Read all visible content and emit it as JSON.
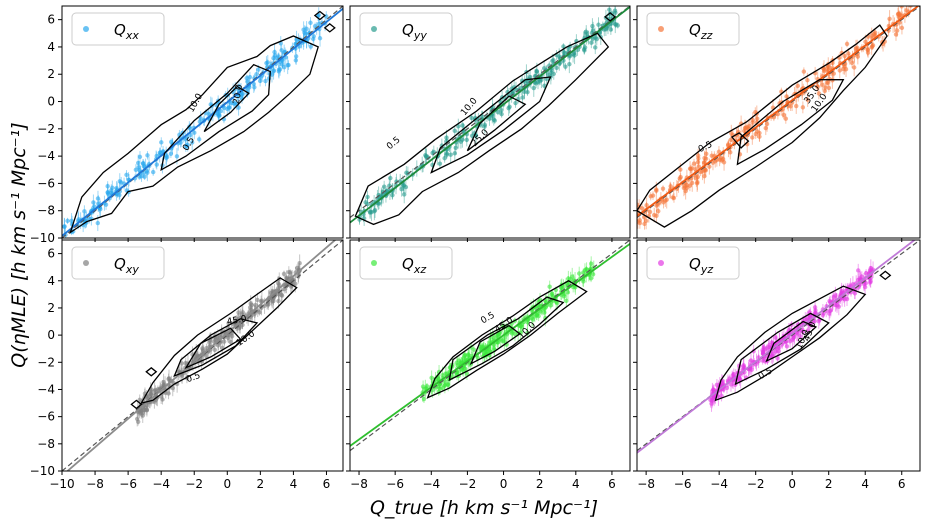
{
  "chart_data": {
    "type": "scatter",
    "ylabel": "Q(ηMLE)  [h km s⁻¹ Mpc⁻¹]",
    "xlabel": "Q_true  [h km s⁻¹ Mpc⁻¹]",
    "y_ticks": [
      -10,
      -8,
      -6,
      -4,
      -2,
      0,
      2,
      4,
      6
    ],
    "panels": [
      {
        "name": "Qxx",
        "label_main": "Q",
        "label_sub": "xx",
        "color": "#29a8ee",
        "fit_color": "#1f77d8",
        "xlim": [
          -10,
          7
        ],
        "ylim": [
          -10,
          7
        ],
        "x_ticks": [],
        "x_range": [
          -10,
          6
        ],
        "spread": 0.9,
        "fit": {
          "slope": 0.98,
          "intercept": -0.05
        },
        "outer": [
          [
            -9.5,
            -9.6
          ],
          [
            -8.5,
            -8.8
          ],
          [
            -7,
            -8.2
          ],
          [
            -6,
            -6.6
          ],
          [
            -4.5,
            -6.2
          ],
          [
            -3,
            -4.8
          ],
          [
            -1,
            -3.6
          ],
          [
            1,
            -2.2
          ],
          [
            2.5,
            -0.8
          ],
          [
            3.8,
            0.6
          ],
          [
            5,
            2
          ],
          [
            5.5,
            4
          ],
          [
            4,
            4.8
          ],
          [
            2.6,
            4.1
          ],
          [
            1.8,
            3.3
          ],
          [
            0,
            2.5
          ],
          [
            -1.5,
            0.5
          ],
          [
            -2.5,
            -0.6
          ],
          [
            -4,
            -1.7
          ],
          [
            -6,
            -3.8
          ],
          [
            -7.5,
            -5.2
          ],
          [
            -8.8,
            -7
          ]
        ],
        "inner": [
          [
            -4,
            -5
          ],
          [
            -2.5,
            -4
          ],
          [
            -0.5,
            -2.2
          ],
          [
            1.5,
            -0.7
          ],
          [
            2.5,
            0.5
          ],
          [
            2.6,
            2.2
          ],
          [
            1.6,
            2.7
          ],
          [
            0,
            0.6
          ],
          [
            -2,
            -1.4
          ],
          [
            -3.8,
            -3.8
          ]
        ],
        "core": [
          [
            -1.4,
            -2.2
          ],
          [
            0.2,
            -0.8
          ],
          [
            1.3,
            0.6
          ],
          [
            0.6,
            1.1
          ],
          [
            -0.5,
            -0.2
          ]
        ],
        "clabels": [
          {
            "x": -1.8,
            "y": -0.2,
            "t": "10.0",
            "r": -60
          },
          {
            "x": 0.8,
            "y": 0.5,
            "t": "20.0",
            "r": -80
          },
          {
            "x": -2.2,
            "y": -3.2,
            "t": "0.5",
            "r": -60
          }
        ],
        "diamonds": [
          [
            5.6,
            6.3
          ],
          [
            6.2,
            5.4
          ]
        ]
      },
      {
        "name": "Qyy",
        "label_main": "Q",
        "label_sub": "yy",
        "color": "#2a9d8f",
        "fit_color": "#1e8a3c",
        "xlim": [
          -8.5,
          7
        ],
        "ylim": [
          -10,
          7
        ],
        "x_ticks": [],
        "x_range": [
          -8,
          6.5
        ],
        "spread": 0.85,
        "fit": {
          "slope": 1.02,
          "intercept": -0.2
        },
        "outer": [
          [
            -8.2,
            -8.4
          ],
          [
            -7.2,
            -9
          ],
          [
            -5.8,
            -8.3
          ],
          [
            -4.5,
            -6.6
          ],
          [
            -2.5,
            -5.2
          ],
          [
            -0.8,
            -3.6
          ],
          [
            1,
            -2
          ],
          [
            2.5,
            -0.3
          ],
          [
            4,
            1.6
          ],
          [
            5.8,
            4
          ],
          [
            5.2,
            5
          ],
          [
            3.5,
            4
          ],
          [
            2.3,
            3
          ],
          [
            0.5,
            1.5
          ],
          [
            -1.5,
            -0.7
          ],
          [
            -3.8,
            -2.8
          ],
          [
            -5.5,
            -4.6
          ],
          [
            -7.5,
            -6.2
          ]
        ],
        "inner": [
          [
            -4,
            -5.2
          ],
          [
            -2,
            -3.9
          ],
          [
            0,
            -2.1
          ],
          [
            2,
            0
          ],
          [
            2.6,
            1.8
          ],
          [
            1.2,
            1.6
          ],
          [
            -1,
            -0.7
          ],
          [
            -3.5,
            -3.4
          ]
        ],
        "core": [
          [
            -2,
            -3.6
          ],
          [
            -0.5,
            -2.1
          ],
          [
            1.2,
            -0.2
          ],
          [
            0.3,
            0.4
          ],
          [
            -1.3,
            -1.6
          ]
        ],
        "clabels": [
          {
            "x": -1.8,
            "y": -0.5,
            "t": "10.0",
            "r": -50
          },
          {
            "x": -1.2,
            "y": -2.8,
            "t": "25.0",
            "r": -45
          },
          {
            "x": -6,
            "y": -3.2,
            "t": "0.5",
            "r": -40
          }
        ],
        "diamonds": [
          [
            5.9,
            6.2
          ]
        ]
      },
      {
        "name": "Qzz",
        "label_main": "Q",
        "label_sub": "zz",
        "color": "#f5763a",
        "fit_color": "#f05a14",
        "xlim": [
          -8.5,
          7
        ],
        "ylim": [
          -10,
          7
        ],
        "x_ticks": [],
        "x_range": [
          -8.5,
          6.5
        ],
        "spread": 0.95,
        "fit": {
          "slope": 1.0,
          "intercept": 0.1
        },
        "outer": [
          [
            -8.5,
            -8
          ],
          [
            -7,
            -9.2
          ],
          [
            -5.5,
            -8
          ],
          [
            -4,
            -6.5
          ],
          [
            -2,
            -4.8
          ],
          [
            0,
            -3
          ],
          [
            1.5,
            -1.2
          ],
          [
            2.8,
            0.8
          ],
          [
            4,
            2.5
          ],
          [
            5.2,
            4.8
          ],
          [
            4.8,
            5.6
          ],
          [
            3.5,
            4.2
          ],
          [
            2,
            2.8
          ],
          [
            0,
            1.2
          ],
          [
            -2.5,
            -1.5
          ],
          [
            -4.5,
            -3
          ],
          [
            -6,
            -4.6
          ],
          [
            -7.8,
            -6.5
          ]
        ],
        "inner": [
          [
            -3,
            -4.6
          ],
          [
            -1.5,
            -3.5
          ],
          [
            0.5,
            -1.7
          ],
          [
            2.2,
            0.1
          ],
          [
            2.8,
            1.6
          ],
          [
            1.5,
            1.6
          ],
          [
            -0.5,
            0
          ],
          [
            -2.8,
            -2.6
          ]
        ],
        "core": [
          [
            -3.3,
            -2.6
          ],
          [
            -2.8,
            -3.4
          ],
          [
            -2.4,
            -2.9
          ],
          [
            -2.9,
            -2.3
          ]
        ],
        "clabels": [
          {
            "x": 1.2,
            "y": 0.4,
            "t": "35.0",
            "r": -55
          },
          {
            "x": 1.6,
            "y": -0.2,
            "t": "10.0",
            "r": -55
          },
          {
            "x": -4.7,
            "y": -3.5,
            "t": "0.5",
            "r": -25
          }
        ],
        "diamonds": []
      },
      {
        "name": "Qxy",
        "label_main": "Q",
        "label_sub": "xy",
        "color": "#808080",
        "fit_color": "#8c8c8c",
        "xlim": [
          -10,
          7
        ],
        "ylim": [
          -10,
          7
        ],
        "x_ticks": [
          -10,
          -8,
          -6,
          -4,
          -2,
          0,
          2,
          4,
          6
        ],
        "x_range": [
          -5.5,
          4.5
        ],
        "spread": 0.7,
        "fit": {
          "slope": 1.05,
          "intercept": 0.15
        },
        "outer": [
          [
            -5.2,
            -5
          ],
          [
            -4.5,
            -4.8
          ],
          [
            -3.2,
            -3.6
          ],
          [
            -1.5,
            -2.5
          ],
          [
            0,
            -1.4
          ],
          [
            1.5,
            0.3
          ],
          [
            3,
            2
          ],
          [
            4.2,
            3.5
          ],
          [
            3.2,
            4.2
          ],
          [
            1.8,
            3
          ],
          [
            0.2,
            1.6
          ],
          [
            -1.8,
            0
          ],
          [
            -3.2,
            -1.5
          ],
          [
            -4.5,
            -3.5
          ]
        ],
        "inner": [
          [
            -3.2,
            -3
          ],
          [
            -1.5,
            -2.2
          ],
          [
            0.5,
            -0.8
          ],
          [
            1.8,
            0.9
          ],
          [
            0.8,
            1.2
          ],
          [
            -1,
            0
          ],
          [
            -2.8,
            -1.8
          ]
        ],
        "core": [
          [
            -2.5,
            -2.4
          ],
          [
            -1,
            -1.6
          ],
          [
            0.8,
            -0.3
          ],
          [
            0.2,
            0.5
          ],
          [
            -1.6,
            -0.6
          ]
        ],
        "clabels": [
          {
            "x": 0.6,
            "y": 0.9,
            "t": "45.0",
            "r": -10
          },
          {
            "x": 1.2,
            "y": -0.4,
            "t": "10.0",
            "r": -35
          },
          {
            "x": -2,
            "y": -3.3,
            "t": "0.5",
            "r": -20
          }
        ],
        "diamonds": [
          [
            -4.6,
            -2.7
          ],
          [
            -5.5,
            -5.1
          ]
        ]
      },
      {
        "name": "Qxz",
        "label_main": "Q",
        "label_sub": "xz",
        "color": "#3de83d",
        "fit_color": "#2fbf2f",
        "xlim": [
          -8.5,
          7
        ],
        "ylim": [
          -10,
          7
        ],
        "x_ticks": [
          -8,
          -6,
          -4,
          -2,
          0,
          2,
          4,
          6
        ],
        "x_range": [
          -4.5,
          5
        ],
        "spread": 0.7,
        "fit": {
          "slope": 0.96,
          "intercept": 0.0
        },
        "outer": [
          [
            -4.2,
            -4.6
          ],
          [
            -3,
            -3.9
          ],
          [
            -1.5,
            -2.6
          ],
          [
            0,
            -1.4
          ],
          [
            1.5,
            0
          ],
          [
            3,
            1.6
          ],
          [
            4.6,
            3.2
          ],
          [
            3.6,
            4
          ],
          [
            2,
            2.8
          ],
          [
            0.5,
            1.4
          ],
          [
            -1.2,
            0
          ],
          [
            -2.8,
            -1.6
          ],
          [
            -3.8,
            -3.2
          ]
        ],
        "inner": [
          [
            -3,
            -3.3
          ],
          [
            -1.2,
            -2.1
          ],
          [
            0.5,
            -0.8
          ],
          [
            2,
            0.8
          ],
          [
            3.3,
            2.4
          ],
          [
            2.4,
            2.8
          ],
          [
            0.8,
            1.2
          ],
          [
            -0.9,
            0
          ],
          [
            -2.8,
            -1.8
          ]
        ],
        "core": [
          [
            -1.8,
            -2.1
          ],
          [
            -0.5,
            -1.2
          ],
          [
            0.9,
            0.1
          ],
          [
            0.3,
            0.7
          ],
          [
            -1.3,
            -0.5
          ]
        ],
        "clabels": [
          {
            "x": 0.1,
            "y": 0.6,
            "t": "45.0",
            "r": -35
          },
          {
            "x": 1.4,
            "y": 0.2,
            "t": "10.0",
            "r": -45
          },
          {
            "x": -0.8,
            "y": 1.1,
            "t": "0.5",
            "r": -30
          }
        ],
        "diamonds": []
      },
      {
        "name": "Qyz",
        "label_main": "Q",
        "label_sub": "yz",
        "color": "#e23ce2",
        "fit_color": "#c07ad8",
        "xlim": [
          -8.5,
          7
        ],
        "ylim": [
          -10,
          7
        ],
        "x_ticks": [
          -8,
          -6,
          -4,
          -2,
          0,
          2,
          4,
          6
        ],
        "x_range": [
          -4.5,
          4.5
        ],
        "spread": 0.6,
        "fit": {
          "slope": 1.03,
          "intercept": 0.1
        },
        "outer": [
          [
            -4.2,
            -4.8
          ],
          [
            -3,
            -4.2
          ],
          [
            -1.5,
            -3
          ],
          [
            0,
            -1.6
          ],
          [
            1.5,
            -0.2
          ],
          [
            3,
            1.5
          ],
          [
            4,
            3
          ],
          [
            2.8,
            3.6
          ],
          [
            1.4,
            2.6
          ],
          [
            0,
            1.6
          ],
          [
            -1.5,
            0.2
          ],
          [
            -3,
            -1.6
          ],
          [
            -3.9,
            -3.3
          ]
        ],
        "inner": [
          [
            -3.1,
            -3.6
          ],
          [
            -1.4,
            -2.5
          ],
          [
            0.5,
            -1
          ],
          [
            2,
            0.9
          ],
          [
            1,
            1.6
          ],
          [
            -0.8,
            0.2
          ],
          [
            -2.8,
            -1.8
          ]
        ],
        "core": [
          [
            -1.4,
            -1.9
          ],
          [
            0,
            -1
          ],
          [
            1.3,
            0.6
          ],
          [
            0.6,
            1
          ],
          [
            -1,
            -0.6
          ]
        ],
        "clabels": [
          {
            "x": 1.1,
            "y": 0.2,
            "t": "45.0",
            "r": -70
          },
          {
            "x": 0.7,
            "y": -0.4,
            "t": "10.0",
            "r": -65
          },
          {
            "x": -1.4,
            "y": -3,
            "t": "0.5",
            "r": -30
          }
        ],
        "diamonds": [
          [
            5.1,
            4.4
          ]
        ]
      }
    ]
  }
}
